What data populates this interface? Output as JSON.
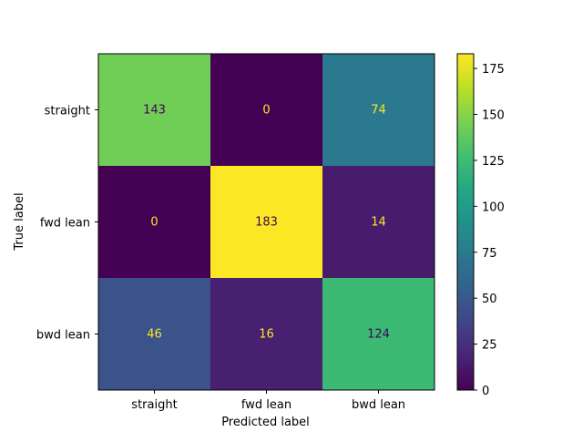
{
  "chart_data": {
    "type": "heatmap",
    "title": "",
    "xlabel": "Predicted label",
    "ylabel": "True label",
    "x_categories": [
      "straight",
      "fwd lean",
      "bwd lean"
    ],
    "y_categories": [
      "straight",
      "fwd lean",
      "bwd lean"
    ],
    "values": [
      [
        143,
        0,
        74
      ],
      [
        0,
        183,
        14
      ],
      [
        46,
        16,
        124
      ]
    ],
    "colormap": "viridis",
    "colorbar": {
      "range": [
        0,
        183
      ],
      "ticks": [
        0,
        25,
        50,
        75,
        100,
        125,
        150,
        175
      ]
    },
    "text_colors": {
      "on_dark": "#fde725",
      "on_light": "#440154"
    },
    "grid": false
  }
}
